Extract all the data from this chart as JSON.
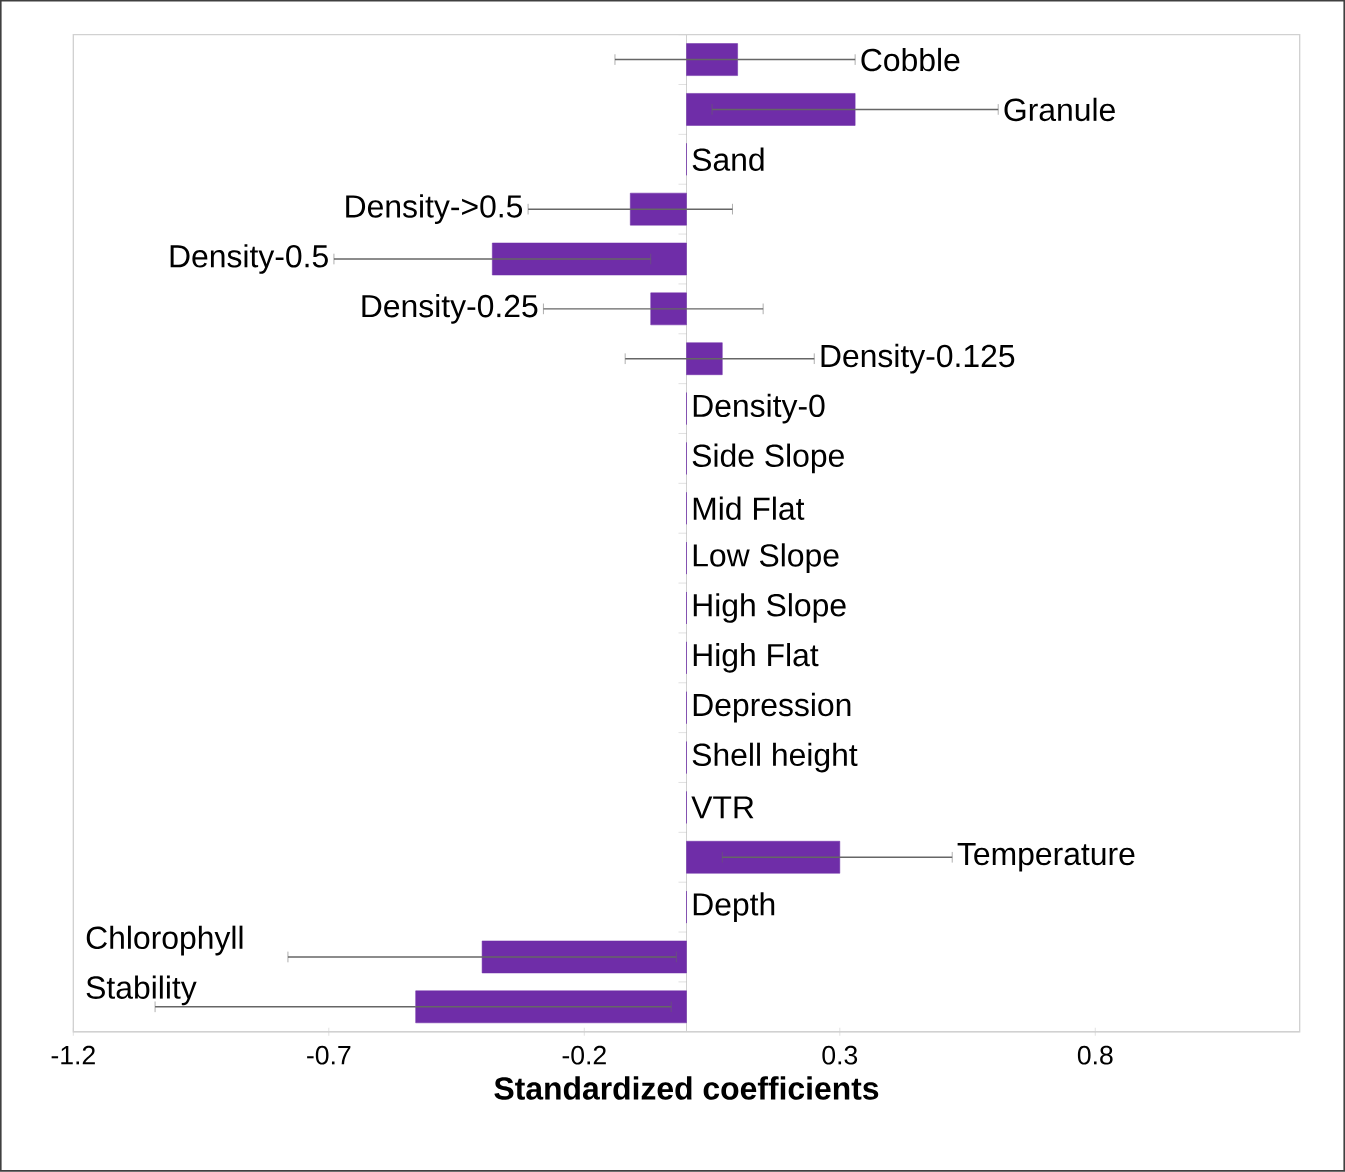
{
  "chart_data": {
    "type": "bar",
    "orientation": "horizontal",
    "xlabel": "**Standardized coefficients**",
    "categories": [
      "Cobble",
      "Granule",
      "Sand",
      "Density->0.5",
      "Density-0.5",
      "Density-0.25",
      "Density-0.125",
      "Density-0",
      "Side Slope",
      "Mid Flat",
      "Low Slope",
      "High Slope",
      "High Flat",
      "Depression",
      "Shell height",
      "VTR",
      "Temperature",
      "Depth",
      "Chlorophyll",
      "Stability"
    ],
    "values": [
      0.1,
      0.33,
      0,
      -0.11,
      -0.38,
      -0.07,
      0.07,
      0,
      0,
      0,
      0,
      0,
      0,
      0,
      0,
      0,
      0.3,
      0,
      -0.4,
      -0.53
    ],
    "errors": [
      [
        -0.14,
        0.33
      ],
      [
        0.05,
        0.61
      ],
      null,
      [
        -0.31,
        0.09
      ],
      [
        -0.69,
        -0.07
      ],
      [
        -0.28,
        0.15
      ],
      [
        -0.12,
        0.25
      ],
      null,
      null,
      null,
      null,
      null,
      null,
      null,
      null,
      null,
      [
        0.07,
        0.52
      ],
      null,
      [
        -0.78,
        -0.02
      ],
      [
        -1.04,
        -0.03
      ]
    ],
    "color": "#6f2da8",
    "xlim": [
      -1.2,
      1.2
    ],
    "xticks": [
      -1.2,
      -0.7,
      -0.2,
      0.3,
      0.8
    ],
    "grid": false
  }
}
